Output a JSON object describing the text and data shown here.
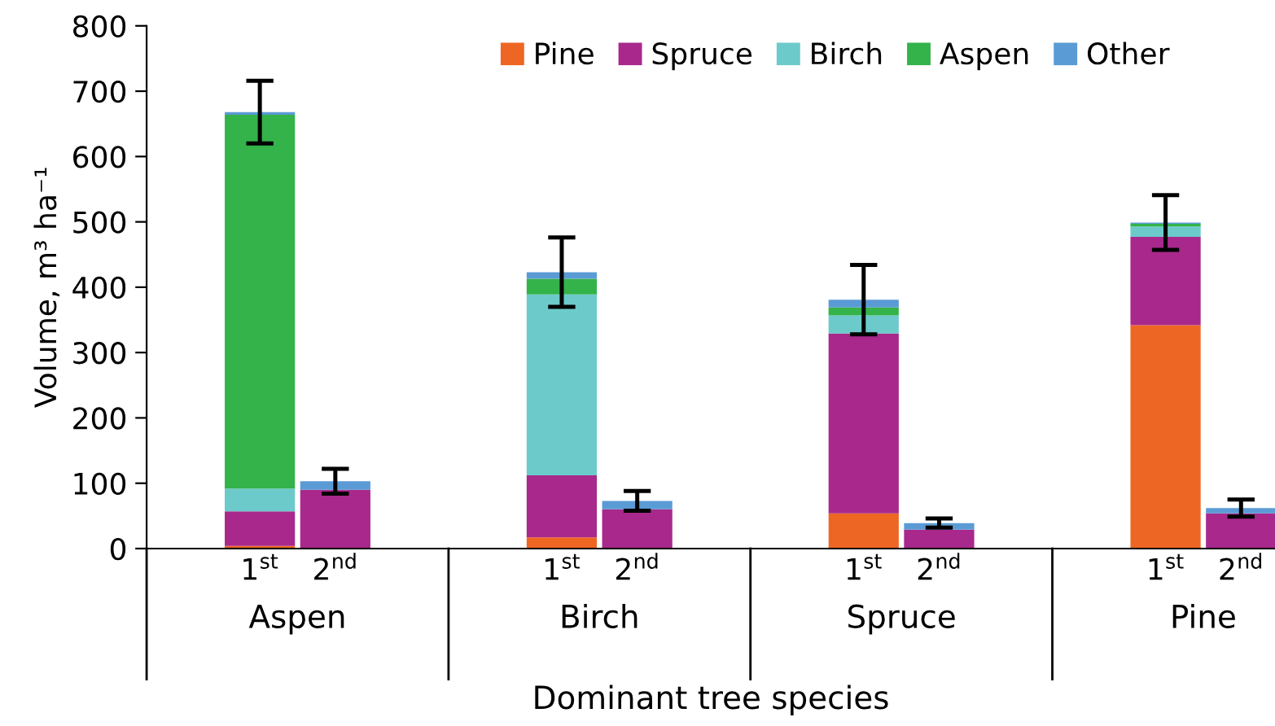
{
  "chart_data": {
    "type": "bar",
    "stacked": true,
    "categories": [
      "1$^{st}$",
      "2$^{nd}$",
      "1$^{st}$",
      "2$^{nd}$",
      "1$^{st}$",
      "2$^{nd}$",
      "1$^{st}$",
      "2$^{nd}$"
    ],
    "series": [
      {
        "name": "Pine",
        "color": "#ee6623",
        "values": [
          4,
          0,
          17,
          0,
          54,
          0,
          342,
          0
        ]
      },
      {
        "name": "Spruce",
        "color": "#a8288c",
        "values": [
          53,
          90,
          95,
          60,
          275,
          29,
          135,
          54
        ]
      },
      {
        "name": "Birch",
        "color": "#6ccaca",
        "values": [
          35,
          0,
          277,
          0,
          28,
          0,
          16,
          0
        ]
      },
      {
        "name": "Aspen",
        "color": "#33b34a",
        "values": [
          572,
          0,
          24,
          0,
          12,
          0,
          4,
          0
        ]
      },
      {
        "name": "Other",
        "color": "#5b9bd5",
        "values": [
          4,
          13,
          10,
          13,
          12,
          10,
          2,
          8
        ],
        "errors": [
          48,
          19,
          53,
          15,
          53,
          7,
          42,
          13
        ]
      }
    ],
    "annotations": [
      "Aspen",
      "Birch",
      "Spruce",
      "Pine"
    ],
    "xlabel": "Dominant tree species",
    "ylabel": "Volume, m³ ha⁻¹",
    "ylim": [
      0,
      800
    ],
    "yticks": [
      0,
      100,
      200,
      300,
      400,
      500,
      600,
      700,
      800
    ],
    "legend": "top right",
    "grid": false
  }
}
